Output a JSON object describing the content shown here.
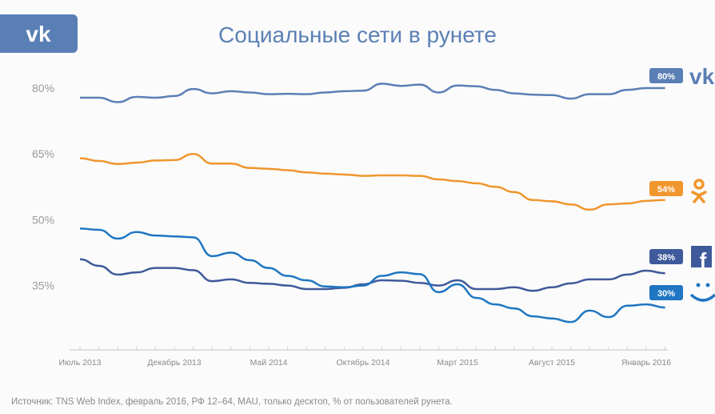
{
  "title": "Социальные сети в рунете",
  "source": "Источник: TNS Web Index, февраль 2016, РФ 12–64, MAU, только десктоп, % от пользователей рунета.",
  "chart_data": {
    "type": "line",
    "title": "Социальные сети в рунете",
    "xlabel": "",
    "ylabel": "",
    "y_ticks": [
      "80%",
      "65%",
      "50%",
      "35%"
    ],
    "y_tick_values": [
      80,
      65,
      50,
      35
    ],
    "x_tick_labels": [
      "Июль 2013",
      "Декабрь 2013",
      "Май 2014",
      "Октябрь 2014",
      "Март 2015",
      "Август 2015",
      "Январь 2016"
    ],
    "x_tick_month_index": [
      0,
      5,
      10,
      15,
      20,
      25,
      30
    ],
    "x_start": "Июль 2013",
    "x_interval": "month",
    "grid": false,
    "legend": "right end labels with logos",
    "series": [
      {
        "logo": "vk-icon",
        "color": "#5a7fb5",
        "end_label": "80%",
        "values": [
          77.8,
          77.8,
          76.8,
          78,
          77.8,
          78.2,
          79.8,
          78.8,
          79.3,
          79,
          78.6,
          78.7,
          78.6,
          79,
          79.3,
          79.4,
          81,
          80.5,
          80.8,
          79,
          80.6,
          80.4,
          79.6,
          78.8,
          78.5,
          78.4,
          77.6,
          78.6,
          78.6,
          79.6,
          80,
          80
        ]
      },
      {
        "logo": "odnoklassniki-icon",
        "color": "#f0962e",
        "end_label": "54%",
        "values": [
          64,
          63.4,
          62.7,
          63,
          63.5,
          63.6,
          65,
          62.8,
          62.8,
          61.8,
          61.6,
          61.3,
          60.8,
          60.5,
          60.3,
          60,
          60.1,
          60.1,
          60,
          59.2,
          58.8,
          58.3,
          57.5,
          56.3,
          54.5,
          54.2,
          53.5,
          52.3,
          53.5,
          53.7,
          54.3,
          54.5
        ]
      },
      {
        "logo": "facebook-icon",
        "color": "#3f5a9a",
        "end_label": "38%",
        "values": [
          41,
          39.5,
          37.5,
          38,
          39,
          39,
          38.5,
          36,
          36.4,
          35.6,
          35.4,
          35,
          34.2,
          34.2,
          34.5,
          35.3,
          36.2,
          36.1,
          35.6,
          35,
          36.2,
          34.2,
          34.2,
          34.6,
          33.8,
          34.6,
          35.5,
          36.4,
          36.4,
          37.5,
          38.4,
          37.8
        ]
      },
      {
        "logo": "moimir-smile-icon",
        "color": "#1f76c2",
        "end_label": "30%",
        "values": [
          48,
          47.7,
          45.7,
          47.2,
          46.4,
          46.2,
          46,
          41.7,
          42.5,
          40.8,
          39,
          37.2,
          36.2,
          34.8,
          34.6,
          35,
          37.2,
          38,
          37.6,
          33.5,
          35.3,
          32.2,
          30.7,
          29.8,
          28,
          27.5,
          26.7,
          29.3,
          27.8,
          30.4,
          30.7,
          30
        ]
      }
    ]
  }
}
